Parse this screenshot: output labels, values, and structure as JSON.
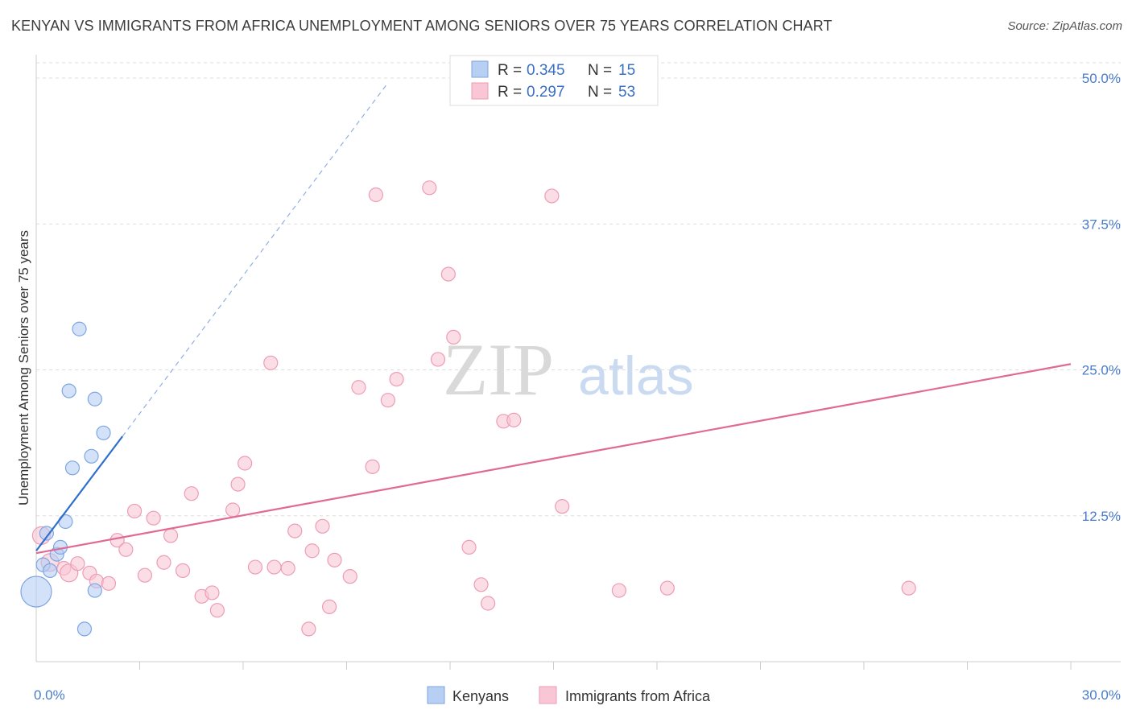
{
  "title": "KENYAN VS IMMIGRANTS FROM AFRICA UNEMPLOYMENT AMONG SENIORS OVER 75 YEARS CORRELATION CHART",
  "source": "Source: ZipAtlas.com",
  "watermark": {
    "zip": "ZIP",
    "atlas": "atlas"
  },
  "colors": {
    "kenyan_fill": "#b6cff3",
    "kenyan_stroke": "#7ea6e2",
    "kenyan_line": "#2f6fcb",
    "africa_fill": "#f8c6d4",
    "africa_stroke": "#ee9cb5",
    "africa_line": "#e06a93",
    "grid": "#dddddd",
    "tick_text": "#4a7cc9"
  },
  "chart_data": {
    "type": "scatter",
    "title": "KENYAN VS IMMIGRANTS FROM AFRICA UNEMPLOYMENT AMONG SENIORS OVER 75 YEARS CORRELATION CHART",
    "xlabel": "",
    "ylabel": "Unemployment Among Seniors over 75 years",
    "xlim": [
      0,
      30
    ],
    "ylim": [
      0,
      52
    ],
    "x_tick_labels": [
      "0.0%",
      "30.0%"
    ],
    "y_ticks": [
      12.5,
      25.0,
      37.5,
      50.0
    ],
    "y_tick_labels": [
      "12.5%",
      "25.0%",
      "37.5%",
      "50.0%"
    ],
    "legend": [
      {
        "r_label": "R =",
        "r": "0.345",
        "n_label": "N =",
        "n": "15"
      },
      {
        "r_label": "R =",
        "r": "0.297",
        "n_label": "N =",
        "n": "53"
      }
    ],
    "series": [
      {
        "name": "Kenyans",
        "points": [
          [
            0.0,
            6.0,
            3
          ],
          [
            0.2,
            8.3,
            1
          ],
          [
            0.3,
            11.0,
            1
          ],
          [
            0.4,
            7.8,
            1
          ],
          [
            0.6,
            9.2,
            1
          ],
          [
            0.7,
            9.8,
            1
          ],
          [
            0.85,
            12.0,
            1
          ],
          [
            0.95,
            23.2,
            1
          ],
          [
            1.05,
            16.6,
            1
          ],
          [
            1.25,
            28.5,
            1
          ],
          [
            1.4,
            2.8,
            1
          ],
          [
            1.6,
            17.6,
            1
          ],
          [
            1.7,
            6.1,
            1
          ],
          [
            1.7,
            22.5,
            1
          ],
          [
            1.95,
            19.6,
            1
          ]
        ],
        "trend_solid": [
          [
            0,
            9.5
          ],
          [
            2.5,
            19.3
          ]
        ],
        "trend_dashed": [
          [
            2.5,
            19.3
          ],
          [
            10.2,
            49.6
          ]
        ]
      },
      {
        "name": "Immigrants from Africa",
        "points": [
          [
            0.15,
            10.8,
            2
          ],
          [
            0.4,
            8.5,
            2
          ],
          [
            0.8,
            8.0,
            1
          ],
          [
            0.95,
            7.6,
            2
          ],
          [
            1.2,
            8.4,
            1
          ],
          [
            1.55,
            7.6,
            1
          ],
          [
            1.75,
            6.9,
            1
          ],
          [
            2.1,
            6.7,
            1
          ],
          [
            2.35,
            10.4,
            1
          ],
          [
            2.6,
            9.6,
            1
          ],
          [
            2.85,
            12.9,
            1
          ],
          [
            3.15,
            7.4,
            1
          ],
          [
            3.4,
            12.3,
            1
          ],
          [
            3.7,
            8.5,
            1
          ],
          [
            3.9,
            10.8,
            1
          ],
          [
            4.25,
            7.8,
            1
          ],
          [
            4.5,
            14.4,
            1
          ],
          [
            4.8,
            5.6,
            1
          ],
          [
            5.1,
            5.9,
            1
          ],
          [
            5.25,
            4.4,
            1
          ],
          [
            5.7,
            13.0,
            1
          ],
          [
            5.85,
            15.2,
            1
          ],
          [
            6.05,
            17.0,
            1
          ],
          [
            6.35,
            8.1,
            1
          ],
          [
            6.8,
            25.6,
            1
          ],
          [
            6.9,
            8.1,
            1
          ],
          [
            7.3,
            8.0,
            1
          ],
          [
            7.5,
            11.2,
            1
          ],
          [
            7.9,
            2.8,
            1
          ],
          [
            8.0,
            9.5,
            1
          ],
          [
            8.3,
            11.6,
            1
          ],
          [
            8.5,
            4.7,
            1
          ],
          [
            8.65,
            8.7,
            1
          ],
          [
            9.1,
            7.3,
            1
          ],
          [
            9.35,
            23.5,
            1
          ],
          [
            9.75,
            16.7,
            1
          ],
          [
            9.85,
            40.0,
            1
          ],
          [
            10.2,
            22.4,
            1
          ],
          [
            10.45,
            24.2,
            1
          ],
          [
            11.4,
            40.6,
            1
          ],
          [
            11.65,
            25.9,
            1
          ],
          [
            11.95,
            33.2,
            1
          ],
          [
            12.1,
            27.8,
            1
          ],
          [
            12.55,
            9.8,
            1
          ],
          [
            12.9,
            6.6,
            1
          ],
          [
            13.1,
            5.0,
            1
          ],
          [
            13.55,
            20.6,
            1
          ],
          [
            13.85,
            20.7,
            1
          ],
          [
            14.95,
            39.9,
            1
          ],
          [
            15.25,
            13.3,
            1
          ],
          [
            16.9,
            6.1,
            1
          ],
          [
            18.3,
            6.3,
            1
          ],
          [
            25.3,
            6.3,
            1
          ]
        ],
        "trend": [
          [
            0,
            9.3
          ],
          [
            30,
            25.5
          ]
        ]
      }
    ]
  },
  "bottom_legend": [
    {
      "label": "Kenyans"
    },
    {
      "label": "Immigrants from Africa"
    }
  ]
}
